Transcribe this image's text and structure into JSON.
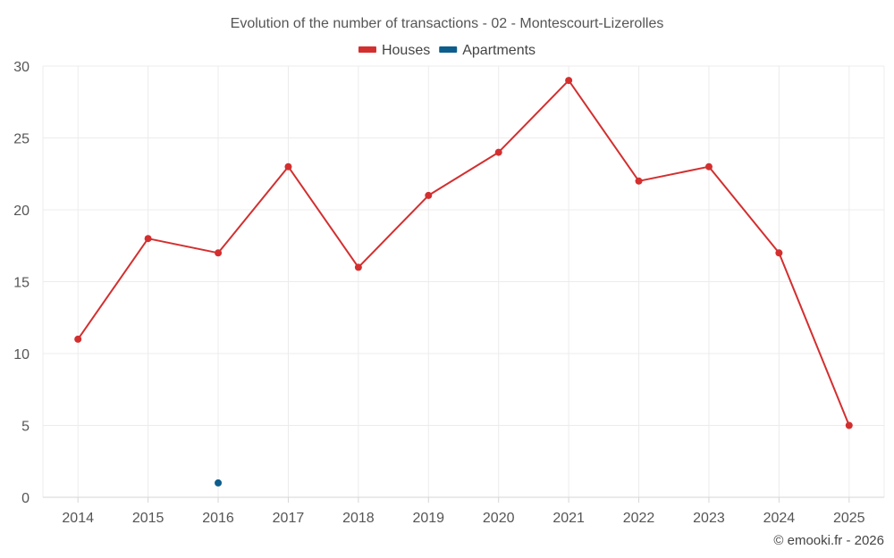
{
  "chart_data": {
    "type": "line",
    "title": "Evolution of the number of transactions - 02 - Montescourt-Lizerolles",
    "categories": [
      "2014",
      "2015",
      "2016",
      "2017",
      "2018",
      "2019",
      "2020",
      "2021",
      "2022",
      "2023",
      "2024",
      "2025"
    ],
    "series": [
      {
        "name": "Houses",
        "color": "#d32f2f",
        "values": [
          11,
          18,
          17,
          23,
          16,
          21,
          24,
          29,
          22,
          23,
          17,
          5
        ]
      },
      {
        "name": "Apartments",
        "color": "#0d5e8c",
        "values": [
          null,
          null,
          1,
          null,
          null,
          null,
          null,
          null,
          null,
          null,
          null,
          null
        ]
      }
    ],
    "ylim": [
      0,
      30
    ],
    "yticks": [
      0,
      5,
      10,
      15,
      20,
      25,
      30
    ],
    "grid": true,
    "legend_position": "top-center",
    "xlabel": "",
    "ylabel": ""
  },
  "credit": "© emooki.fr - 2026"
}
